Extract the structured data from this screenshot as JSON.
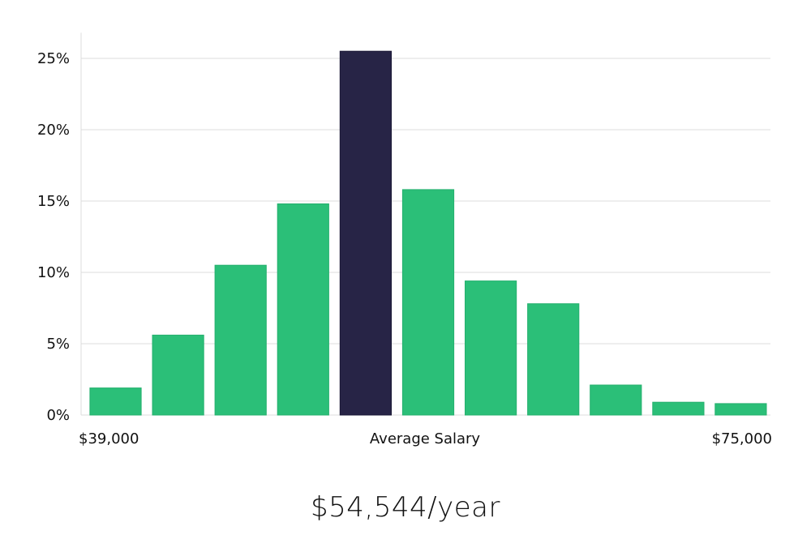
{
  "chart_data": {
    "type": "bar",
    "title": "",
    "xlabel": "Average Salary",
    "ylabel": "",
    "ylim": [
      0,
      26.8
    ],
    "y_ticks": [
      {
        "value": 0,
        "label": "0%"
      },
      {
        "value": 5,
        "label": "5%"
      },
      {
        "value": 10,
        "label": "10%"
      },
      {
        "value": 15,
        "label": "15%"
      },
      {
        "value": 20,
        "label": "20%"
      },
      {
        "value": 25,
        "label": "25%"
      }
    ],
    "x_range_labels": {
      "min": "$39,000",
      "center": "Average Salary",
      "max": "$75,000"
    },
    "values": [
      1.9,
      5.6,
      10.5,
      14.8,
      25.5,
      15.8,
      9.4,
      7.8,
      2.1,
      0.9,
      0.8
    ],
    "highlight_index": 4,
    "grid": true,
    "colors": {
      "bar": "#2bbf78",
      "highlight": "#272446",
      "grid": "#dcdcdc",
      "text": "#111111"
    }
  },
  "summary": {
    "average_salary": "$54,544/year"
  }
}
